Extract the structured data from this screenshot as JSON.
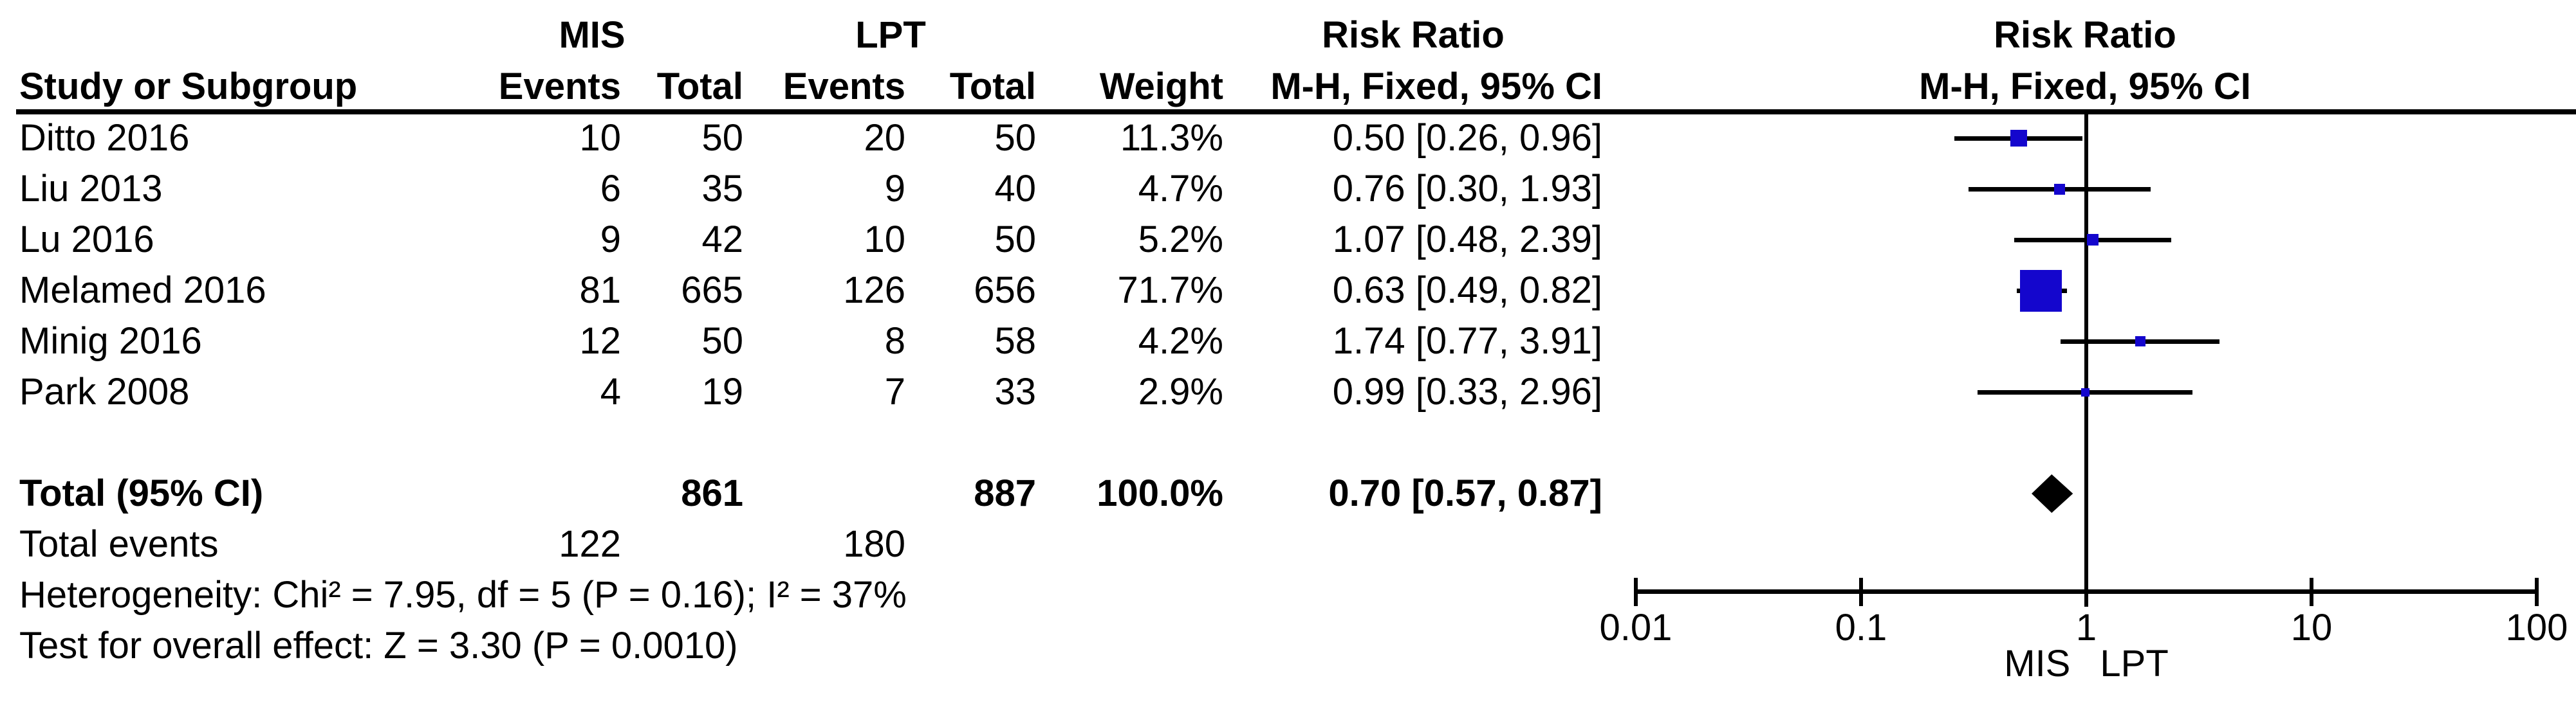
{
  "header": {
    "group_mis": "MIS",
    "group_lpt": "LPT",
    "risk_ratio": "Risk Ratio",
    "method": "M-H, Fixed, 95% CI",
    "study": "Study or Subgroup",
    "events": "Events",
    "total": "Total",
    "weight": "Weight"
  },
  "rows": [
    {
      "study": "Ditto 2016",
      "mis_events": "10",
      "mis_total": "50",
      "lpt_events": "20",
      "lpt_total": "50",
      "weight": "11.3%",
      "rr_ci": "0.50 [0.26, 0.96]"
    },
    {
      "study": "Liu 2013",
      "mis_events": "6",
      "mis_total": "35",
      "lpt_events": "9",
      "lpt_total": "40",
      "weight": "4.7%",
      "rr_ci": "0.76 [0.30, 1.93]"
    },
    {
      "study": "Lu 2016",
      "mis_events": "9",
      "mis_total": "42",
      "lpt_events": "10",
      "lpt_total": "50",
      "weight": "5.2%",
      "rr_ci": "1.07 [0.48, 2.39]"
    },
    {
      "study": "Melamed 2016",
      "mis_events": "81",
      "mis_total": "665",
      "lpt_events": "126",
      "lpt_total": "656",
      "weight": "71.7%",
      "rr_ci": "0.63 [0.49, 0.82]"
    },
    {
      "study": "Minig 2016",
      "mis_events": "12",
      "mis_total": "50",
      "lpt_events": "8",
      "lpt_total": "58",
      "weight": "4.2%",
      "rr_ci": "1.74 [0.77, 3.91]"
    },
    {
      "study": "Park 2008",
      "mis_events": "4",
      "mis_total": "19",
      "lpt_events": "7",
      "lpt_total": "33",
      "weight": "2.9%",
      "rr_ci": "0.99 [0.33, 2.96]"
    }
  ],
  "total_row": {
    "label": "Total (95% CI)",
    "mis_total": "861",
    "lpt_total": "887",
    "weight": "100.0%",
    "rr_ci": "0.70 [0.57, 0.87]"
  },
  "total_events": {
    "label": "Total events",
    "mis": "122",
    "lpt": "180"
  },
  "stats": {
    "heterogeneity": "Heterogeneity: Chi² = 7.95, df = 5 (P = 0.16); I² = 37%",
    "overall_effect": "Test for overall effect: Z = 3.30 (P = 0.0010)"
  },
  "axis": {
    "tick_labels": [
      "0.01",
      "0.1",
      "1",
      "10",
      "100"
    ],
    "tick_values": [
      0.01,
      0.1,
      1,
      10,
      100
    ],
    "left_group": "MIS",
    "right_group": "LPT"
  },
  "colors": {
    "square": "#1406CD",
    "line": "#000000",
    "diamond": "#000000",
    "text": "#000000",
    "background": "#ffffff"
  },
  "chart_data": {
    "type": "scatter",
    "subtype": "forest-plot",
    "title": "Risk Ratio",
    "method": "M-H, Fixed, 95% CI",
    "x_scale": "log10",
    "x_range": [
      0.01,
      100
    ],
    "x_ticks": [
      0.01,
      0.1,
      1,
      10,
      100
    ],
    "null_line": 1,
    "favours_left": "MIS",
    "favours_right": "LPT",
    "studies": [
      {
        "name": "Ditto 2016",
        "rr": 0.5,
        "ci_low": 0.26,
        "ci_high": 0.96,
        "weight_pct": 11.3,
        "mis_events": 10,
        "mis_total": 50,
        "lpt_events": 20,
        "lpt_total": 50
      },
      {
        "name": "Liu 2013",
        "rr": 0.76,
        "ci_low": 0.3,
        "ci_high": 1.93,
        "weight_pct": 4.7,
        "mis_events": 6,
        "mis_total": 35,
        "lpt_events": 9,
        "lpt_total": 40
      },
      {
        "name": "Lu 2016",
        "rr": 1.07,
        "ci_low": 0.48,
        "ci_high": 2.39,
        "weight_pct": 5.2,
        "mis_events": 9,
        "mis_total": 42,
        "lpt_events": 10,
        "lpt_total": 50
      },
      {
        "name": "Melamed 2016",
        "rr": 0.63,
        "ci_low": 0.49,
        "ci_high": 0.82,
        "weight_pct": 71.7,
        "mis_events": 81,
        "mis_total": 665,
        "lpt_events": 126,
        "lpt_total": 656
      },
      {
        "name": "Minig 2016",
        "rr": 1.74,
        "ci_low": 0.77,
        "ci_high": 3.91,
        "weight_pct": 4.2,
        "mis_events": 12,
        "mis_total": 50,
        "lpt_events": 8,
        "lpt_total": 58
      },
      {
        "name": "Park 2008",
        "rr": 0.99,
        "ci_low": 0.33,
        "ci_high": 2.96,
        "weight_pct": 2.9,
        "mis_events": 4,
        "mis_total": 19,
        "lpt_events": 7,
        "lpt_total": 33
      }
    ],
    "total": {
      "name": "Total (95% CI)",
      "rr": 0.7,
      "ci_low": 0.57,
      "ci_high": 0.87,
      "weight_pct": 100.0,
      "mis_total": 861,
      "lpt_total": 887,
      "mis_events": 122,
      "lpt_events": 180
    }
  }
}
